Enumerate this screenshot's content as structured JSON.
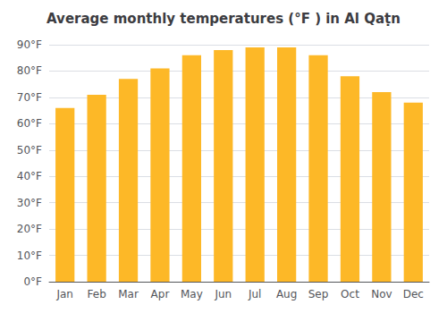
{
  "chart_data": {
    "type": "bar",
    "title": "Average monthly temperatures (°F ) in Al Qaṭn",
    "categories": [
      "Jan",
      "Feb",
      "Mar",
      "Apr",
      "May",
      "Jun",
      "Jul",
      "Aug",
      "Sep",
      "Oct",
      "Nov",
      "Dec"
    ],
    "values": [
      66,
      71,
      77,
      81,
      86,
      88,
      89,
      89,
      86,
      78,
      72,
      68
    ],
    "color": "#FDB827",
    "ylim": [
      0,
      90
    ],
    "yticks": [
      {
        "value": 0,
        "label": "0°F"
      },
      {
        "value": 10,
        "label": "10°F"
      },
      {
        "value": 20,
        "label": "20°F"
      },
      {
        "value": 30,
        "label": "30°F"
      },
      {
        "value": 40,
        "label": "40°F"
      },
      {
        "value": 50,
        "label": "50°F"
      },
      {
        "value": 60,
        "label": "60°F"
      },
      {
        "value": 70,
        "label": "70°F"
      },
      {
        "value": 80,
        "label": "80°F"
      },
      {
        "value": 90,
        "label": "90°F"
      }
    ],
    "grid": true
  }
}
